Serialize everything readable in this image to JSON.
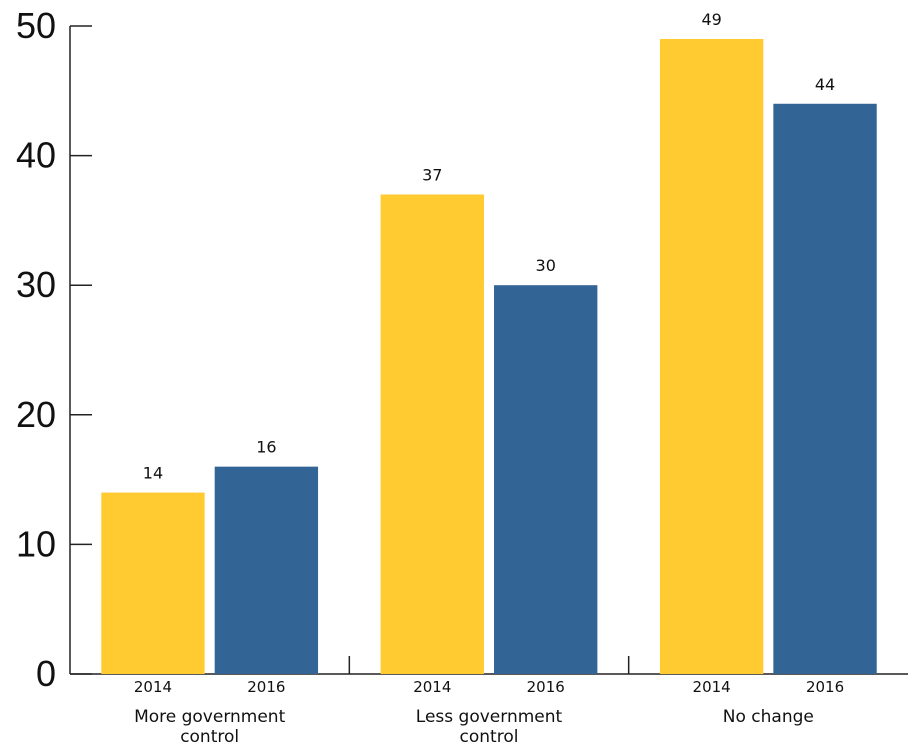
{
  "chart_data": {
    "type": "bar",
    "title": "",
    "xlabel": "",
    "ylabel": "",
    "ylim": [
      0,
      50
    ],
    "yticks": [
      "0",
      "10",
      "20",
      "30",
      "40",
      "50"
    ],
    "groups": [
      {
        "category_lines": [
          "More government",
          "control"
        ],
        "bars": [
          {
            "year": "2014",
            "value": 14
          },
          {
            "year": "2016",
            "value": 16
          }
        ]
      },
      {
        "category_lines": [
          "Less government",
          "control"
        ],
        "bars": [
          {
            "year": "2014",
            "value": 37
          },
          {
            "year": "2016",
            "value": 30
          }
        ]
      },
      {
        "category_lines": [
          "No change"
        ],
        "bars": [
          {
            "year": "2014",
            "value": 49
          },
          {
            "year": "2016",
            "value": 44
          }
        ]
      }
    ],
    "colors": {
      "2014": "#FFCB31",
      "2016": "#326496"
    },
    "grid": false,
    "legend": "none"
  }
}
